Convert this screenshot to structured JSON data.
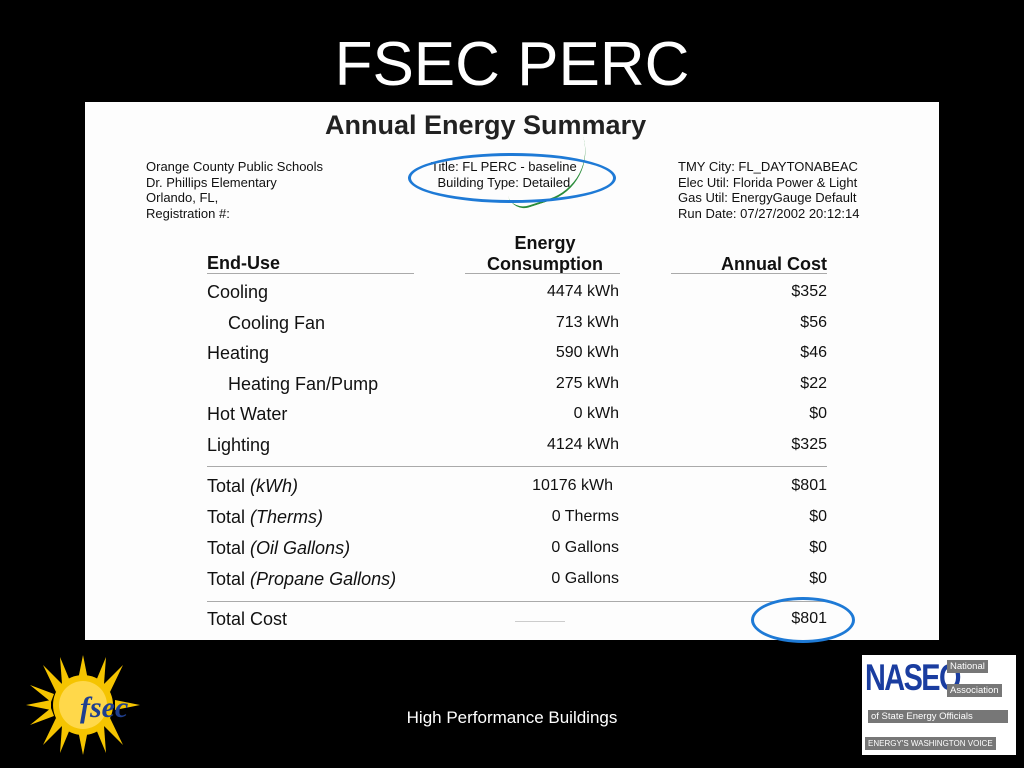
{
  "slide": {
    "title": "FSEC PERC",
    "footer": "High Performance Buildings"
  },
  "document": {
    "title": "Annual Energy Summary",
    "header_left": [
      "Orange County Public Schools",
      "Dr. Phillips Elementary",
      "Orlando, FL,",
      "Registration #:"
    ],
    "header_mid": [
      "Title: FL PERC - baseline",
      "Building Type: Detailed"
    ],
    "header_right": [
      "TMY City: FL_DAYTONABEAC",
      "Elec Util: Florida Power & Light",
      "Gas Util: EnergyGauge Default",
      "Run Date: 07/27/2002 20:12:14"
    ],
    "columns": {
      "end_use": "End-Use",
      "energy_line1": "Energy",
      "energy_line2": "Consumption",
      "cost": "Annual Cost"
    },
    "rows": [
      {
        "label": "Cooling",
        "energy": "4474 kWh",
        "cost": "$352"
      },
      {
        "label": "Cooling Fan",
        "energy": "713 kWh",
        "cost": "$56"
      },
      {
        "label": "Heating",
        "energy": "590 kWh",
        "cost": "$46"
      },
      {
        "label": "Heating Fan/Pump",
        "energy": "275 kWh",
        "cost": "$22"
      },
      {
        "label": "Hot Water",
        "energy": "0 kWh",
        "cost": "$0"
      },
      {
        "label": "Lighting",
        "energy": "4124 kWh",
        "cost": "$325"
      }
    ],
    "totals": [
      {
        "label": "Total",
        "unit": "(kWh)",
        "energy": "10176 kWh",
        "cost": "$801"
      },
      {
        "label": "Total",
        "unit": "(Therms)",
        "energy": "0 Therms",
        "cost": "$0"
      },
      {
        "label": "Total",
        "unit": "(Oil Gallons)",
        "energy": "0 Gallons",
        "cost": "$0"
      },
      {
        "label": "Total",
        "unit": "(Propane Gallons)",
        "energy": "0 Gallons",
        "cost": "$0"
      }
    ],
    "total_cost": {
      "label": "Total Cost",
      "cost": "$801"
    }
  },
  "logos": {
    "fsec_text": "fsec",
    "naseo_text": "NASEO",
    "naseo_tags": [
      "National",
      "Association",
      "of State Energy Officials",
      "ENERGY'S WASHINGTON VOICE"
    ]
  },
  "colors": {
    "background": "#000000",
    "annotation_circle": "#1e7ad6",
    "naseo_blue": "#1a3da0"
  }
}
